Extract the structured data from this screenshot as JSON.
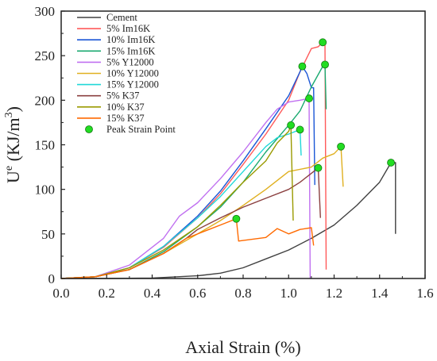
{
  "chart_data": {
    "type": "line",
    "xlabel": "Axial Strain (%)",
    "ylabel": {
      "base": "U",
      "sup_e": "e",
      "unit_open": " (KJ/m",
      "sup_3": "3",
      "unit_close": ")"
    },
    "xlim": [
      0.0,
      1.6
    ],
    "ylim": [
      0,
      300
    ],
    "xticks": [
      "0.0",
      "0.2",
      "0.4",
      "0.6",
      "0.8",
      "1.0",
      "1.2",
      "1.4",
      "1.6"
    ],
    "yticks": [
      "0",
      "50",
      "100",
      "150",
      "200",
      "250",
      "300"
    ],
    "grid": false,
    "legend_position": "top-left",
    "series": [
      {
        "name": "Cement",
        "color": "#404040",
        "points": [
          [
            0,
            0
          ],
          [
            0.2,
            0
          ],
          [
            0.4,
            0.5
          ],
          [
            0.6,
            3
          ],
          [
            0.7,
            6
          ],
          [
            0.8,
            12
          ],
          [
            0.9,
            22
          ],
          [
            1.0,
            32
          ],
          [
            1.1,
            45
          ],
          [
            1.2,
            60
          ],
          [
            1.3,
            82
          ],
          [
            1.4,
            108
          ],
          [
            1.45,
            130
          ],
          [
            1.47,
            130
          ],
          [
            1.47,
            50
          ]
        ]
      },
      {
        "name": "5%    Im16K",
        "color": "#ff5a5a",
        "points": [
          [
            0,
            0
          ],
          [
            0.15,
            2
          ],
          [
            0.3,
            12
          ],
          [
            0.45,
            35
          ],
          [
            0.6,
            68
          ],
          [
            0.7,
            95
          ],
          [
            0.8,
            128
          ],
          [
            0.9,
            162
          ],
          [
            1.0,
            200
          ],
          [
            1.05,
            232
          ],
          [
            1.1,
            258
          ],
          [
            1.13,
            260
          ],
          [
            1.15,
            265
          ],
          [
            1.16,
            265
          ],
          [
            1.165,
            10
          ]
        ]
      },
      {
        "name": "10%  Im16K",
        "color": "#1a56d6",
        "points": [
          [
            0,
            0
          ],
          [
            0.15,
            2
          ],
          [
            0.3,
            12
          ],
          [
            0.45,
            36
          ],
          [
            0.6,
            70
          ],
          [
            0.7,
            98
          ],
          [
            0.8,
            132
          ],
          [
            0.9,
            168
          ],
          [
            1.0,
            205
          ],
          [
            1.05,
            232
          ],
          [
            1.06,
            238
          ],
          [
            1.08,
            230
          ],
          [
            1.1,
            214
          ],
          [
            1.11,
            214
          ],
          [
            1.115,
            105
          ]
        ]
      },
      {
        "name": "15%  Im16K",
        "color": "#1aaa70",
        "points": [
          [
            0,
            0
          ],
          [
            0.15,
            2
          ],
          [
            0.3,
            10
          ],
          [
            0.45,
            30
          ],
          [
            0.6,
            58
          ],
          [
            0.7,
            80
          ],
          [
            0.8,
            108
          ],
          [
            0.9,
            142
          ],
          [
            1.0,
            172
          ],
          [
            1.05,
            188
          ],
          [
            1.1,
            215
          ],
          [
            1.15,
            238
          ],
          [
            1.16,
            240
          ],
          [
            1.165,
            190
          ]
        ]
      },
      {
        "name": "5%     Y12000",
        "color": "#c070f0",
        "points": [
          [
            0,
            0
          ],
          [
            0.15,
            2
          ],
          [
            0.3,
            15
          ],
          [
            0.45,
            45
          ],
          [
            0.52,
            70
          ],
          [
            0.6,
            85
          ],
          [
            0.7,
            112
          ],
          [
            0.8,
            142
          ],
          [
            0.9,
            175
          ],
          [
            0.95,
            190
          ],
          [
            1.0,
            198
          ],
          [
            1.05,
            200
          ],
          [
            1.09,
            202
          ],
          [
            1.095,
            0
          ]
        ]
      },
      {
        "name": "10%  Y12000",
        "color": "#e0b020",
        "points": [
          [
            0,
            0
          ],
          [
            0.15,
            2
          ],
          [
            0.3,
            10
          ],
          [
            0.45,
            28
          ],
          [
            0.6,
            50
          ],
          [
            0.7,
            65
          ],
          [
            0.8,
            82
          ],
          [
            0.9,
            100
          ],
          [
            1.0,
            120
          ],
          [
            1.1,
            125
          ],
          [
            1.15,
            135
          ],
          [
            1.2,
            140
          ],
          [
            1.23,
            148
          ],
          [
            1.24,
            103
          ]
        ]
      },
      {
        "name": "15%  Y12000",
        "color": "#20d8d8",
        "points": [
          [
            0,
            0
          ],
          [
            0.15,
            2
          ],
          [
            0.3,
            12
          ],
          [
            0.45,
            36
          ],
          [
            0.6,
            68
          ],
          [
            0.7,
            92
          ],
          [
            0.8,
            120
          ],
          [
            0.9,
            148
          ],
          [
            0.95,
            158
          ],
          [
            1.0,
            162
          ],
          [
            1.03,
            165
          ],
          [
            1.05,
            167
          ],
          [
            1.055,
            138
          ]
        ]
      },
      {
        "name": "5%     K37",
        "color": "#8b4040",
        "points": [
          [
            0,
            0
          ],
          [
            0.15,
            2
          ],
          [
            0.3,
            10
          ],
          [
            0.45,
            28
          ],
          [
            0.55,
            45
          ],
          [
            0.6,
            55
          ],
          [
            0.7,
            68
          ],
          [
            0.8,
            80
          ],
          [
            0.9,
            90
          ],
          [
            1.0,
            100
          ],
          [
            1.05,
            108
          ],
          [
            1.1,
            118
          ],
          [
            1.13,
            124
          ],
          [
            1.14,
            68
          ]
        ]
      },
      {
        "name": "10%  K37",
        "color": "#9a9a00",
        "points": [
          [
            0,
            0
          ],
          [
            0.15,
            2
          ],
          [
            0.3,
            12
          ],
          [
            0.45,
            32
          ],
          [
            0.6,
            58
          ],
          [
            0.7,
            82
          ],
          [
            0.8,
            108
          ],
          [
            0.9,
            132
          ],
          [
            0.95,
            152
          ],
          [
            1.0,
            165
          ],
          [
            1.01,
            172
          ],
          [
            1.02,
            65
          ]
        ]
      },
      {
        "name": "15%  K37",
        "color": "#ff6a00",
        "points": [
          [
            0,
            0
          ],
          [
            0.15,
            2
          ],
          [
            0.3,
            10
          ],
          [
            0.45,
            28
          ],
          [
            0.55,
            45
          ],
          [
            0.65,
            55
          ],
          [
            0.72,
            62
          ],
          [
            0.77,
            67
          ],
          [
            0.78,
            42
          ],
          [
            0.9,
            46
          ],
          [
            0.95,
            56
          ],
          [
            1.0,
            50
          ],
          [
            1.05,
            55
          ],
          [
            1.1,
            57
          ],
          [
            1.11,
            37
          ]
        ]
      }
    ],
    "peak_points": {
      "name": "Peak Strain Point",
      "color": "#22dd22",
      "points": [
        [
          1.45,
          130
        ],
        [
          1.15,
          265
        ],
        [
          1.06,
          238
        ],
        [
          1.16,
          240
        ],
        [
          1.09,
          202
        ],
        [
          1.23,
          148
        ],
        [
          1.05,
          167
        ],
        [
          1.13,
          124
        ],
        [
          1.01,
          172
        ],
        [
          0.77,
          67
        ]
      ]
    }
  }
}
